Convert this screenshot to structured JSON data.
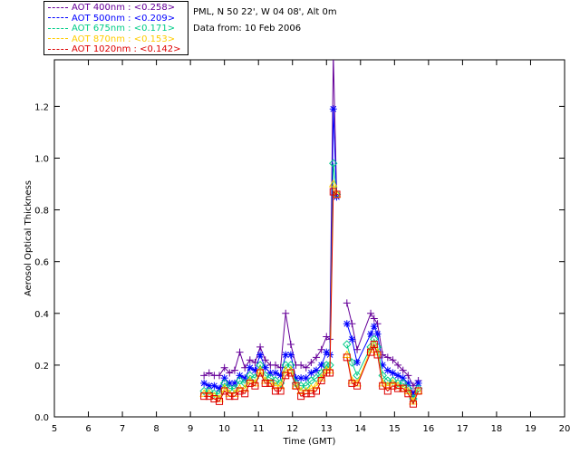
{
  "info": {
    "location": "PML, N 50 22', W 04 08', Alt 0m",
    "date": "Data from: 10 Feb 2006"
  },
  "chart_data": {
    "type": "line",
    "xlabel": "Time (GMT)",
    "ylabel": "Aerosol Optical Thickness",
    "xlim": [
      5,
      20
    ],
    "ylim": [
      0,
      1.38
    ],
    "xticks": [
      5,
      6,
      7,
      8,
      9,
      10,
      11,
      12,
      13,
      14,
      15,
      16,
      17,
      18,
      19,
      20
    ],
    "yticks": [
      0.0,
      0.2,
      0.4,
      0.6,
      0.8,
      1.0,
      1.2
    ],
    "grid": false,
    "legend_position": "top-left, outside plot",
    "series": [
      {
        "name": "AOT  400nm : <0.258>",
        "color": "#660099",
        "marker": "plus",
        "x": [
          9.4,
          9.55,
          9.7,
          9.85,
          10.0,
          10.15,
          10.3,
          10.45,
          10.6,
          10.75,
          10.9,
          11.05,
          11.2,
          11.35,
          11.5,
          11.65,
          11.8,
          11.95,
          12.1,
          12.25,
          12.4,
          12.55,
          12.7,
          12.85,
          13.0,
          13.1,
          13.2,
          13.3,
          13.4,
          13.6,
          13.75,
          13.9,
          14.3,
          14.4,
          14.5,
          14.65,
          14.8,
          14.95,
          15.1,
          15.25,
          15.4,
          15.55,
          15.7
        ],
        "values": [
          0.16,
          0.17,
          0.16,
          0.16,
          0.19,
          0.17,
          0.18,
          0.25,
          0.19,
          0.22,
          0.21,
          0.27,
          0.22,
          0.2,
          0.2,
          0.19,
          0.4,
          0.28,
          0.2,
          0.2,
          0.19,
          0.21,
          0.23,
          0.26,
          0.31,
          0.3,
          1.4,
          0.86,
          null,
          0.44,
          0.36,
          0.26,
          0.4,
          0.38,
          0.36,
          0.24,
          0.23,
          0.22,
          0.2,
          0.18,
          0.16,
          0.12,
          0.14
        ]
      },
      {
        "name": "AOT  500nm : <0.209>",
        "color": "#0000ff",
        "marker": "asterisk",
        "x": [
          9.4,
          9.55,
          9.7,
          9.85,
          10.0,
          10.15,
          10.3,
          10.45,
          10.6,
          10.75,
          10.9,
          11.05,
          11.2,
          11.35,
          11.5,
          11.65,
          11.8,
          11.95,
          12.1,
          12.25,
          12.4,
          12.55,
          12.7,
          12.85,
          13.0,
          13.1,
          13.2,
          13.3,
          13.4,
          13.6,
          13.75,
          13.9,
          14.3,
          14.4,
          14.5,
          14.65,
          14.8,
          14.95,
          15.1,
          15.25,
          15.4,
          15.55,
          15.7
        ],
        "values": [
          0.13,
          0.12,
          0.12,
          0.11,
          0.15,
          0.13,
          0.13,
          0.16,
          0.15,
          0.19,
          0.18,
          0.24,
          0.19,
          0.17,
          0.17,
          0.16,
          0.24,
          0.24,
          0.15,
          0.15,
          0.15,
          0.17,
          0.18,
          0.2,
          0.25,
          0.24,
          1.19,
          0.85,
          null,
          0.36,
          0.3,
          0.21,
          0.32,
          0.35,
          0.32,
          0.2,
          0.18,
          0.17,
          0.16,
          0.15,
          0.13,
          0.09,
          0.13
        ]
      },
      {
        "name": "AOT  675nm : <0.171>",
        "color": "#00cc88",
        "marker": "diamond",
        "x": [
          9.4,
          9.55,
          9.7,
          9.85,
          10.0,
          10.15,
          10.3,
          10.45,
          10.6,
          10.75,
          10.9,
          11.05,
          11.2,
          11.35,
          11.5,
          11.65,
          11.8,
          11.95,
          12.1,
          12.25,
          12.4,
          12.55,
          12.7,
          12.85,
          13.0,
          13.1,
          13.2,
          13.3,
          13.4,
          13.6,
          13.75,
          13.9,
          14.3,
          14.4,
          14.5,
          14.65,
          14.8,
          14.95,
          15.1,
          15.25,
          15.4,
          15.55,
          15.7
        ],
        "values": [
          0.1,
          0.1,
          0.09,
          0.09,
          0.13,
          0.11,
          0.11,
          0.14,
          0.13,
          0.16,
          0.15,
          0.2,
          0.16,
          0.15,
          0.14,
          0.13,
          0.2,
          0.2,
          0.13,
          0.12,
          0.12,
          0.14,
          0.15,
          0.17,
          0.2,
          0.2,
          0.98,
          0.86,
          null,
          0.28,
          0.21,
          0.16,
          0.27,
          0.3,
          0.27,
          0.16,
          0.14,
          0.14,
          0.13,
          0.13,
          0.11,
          0.07,
          0.11
        ]
      },
      {
        "name": "AOT  870nm : <0.153>",
        "color": "#ffcc00",
        "marker": "triangle",
        "x": [
          9.4,
          9.55,
          9.7,
          9.85,
          10.0,
          10.15,
          10.3,
          10.45,
          10.6,
          10.75,
          10.9,
          11.05,
          11.2,
          11.35,
          11.5,
          11.65,
          11.8,
          11.95,
          12.1,
          12.25,
          12.4,
          12.55,
          12.7,
          12.85,
          13.0,
          13.1,
          13.2,
          13.3,
          13.4,
          13.6,
          13.75,
          13.9,
          14.3,
          14.4,
          14.5,
          14.65,
          14.8,
          14.95,
          15.1,
          15.25,
          15.4,
          15.55,
          15.7
        ],
        "values": [
          0.09,
          0.09,
          0.08,
          0.07,
          0.11,
          0.09,
          0.09,
          0.11,
          0.11,
          0.14,
          0.13,
          0.18,
          0.14,
          0.13,
          0.12,
          0.12,
          0.18,
          0.18,
          0.12,
          0.1,
          0.1,
          0.11,
          0.12,
          0.15,
          0.18,
          0.18,
          0.9,
          0.86,
          null,
          0.24,
          0.14,
          0.13,
          0.26,
          0.28,
          0.25,
          0.13,
          0.12,
          0.13,
          0.12,
          0.11,
          0.1,
          0.06,
          0.1
        ]
      },
      {
        "name": "AOT 1020nm : <0.142>",
        "color": "#dd0000",
        "marker": "square",
        "x": [
          9.4,
          9.55,
          9.7,
          9.85,
          10.0,
          10.15,
          10.3,
          10.45,
          10.6,
          10.75,
          10.9,
          11.05,
          11.2,
          11.35,
          11.5,
          11.65,
          11.8,
          11.95,
          12.1,
          12.25,
          12.4,
          12.55,
          12.7,
          12.85,
          13.0,
          13.1,
          13.2,
          13.3,
          13.4,
          13.6,
          13.75,
          13.9,
          14.3,
          14.4,
          14.5,
          14.65,
          14.8,
          14.95,
          15.1,
          15.25,
          15.4,
          15.55,
          15.7
        ],
        "values": [
          0.08,
          0.08,
          0.07,
          0.06,
          0.1,
          0.08,
          0.08,
          0.1,
          0.09,
          0.13,
          0.12,
          0.17,
          0.13,
          0.13,
          0.1,
          0.1,
          0.16,
          0.17,
          0.12,
          0.08,
          0.09,
          0.09,
          0.1,
          0.14,
          0.17,
          0.17,
          0.87,
          0.86,
          null,
          0.23,
          0.13,
          0.12,
          0.25,
          0.28,
          0.24,
          0.12,
          0.1,
          0.12,
          0.11,
          0.11,
          0.09,
          0.05,
          0.1
        ]
      }
    ]
  }
}
